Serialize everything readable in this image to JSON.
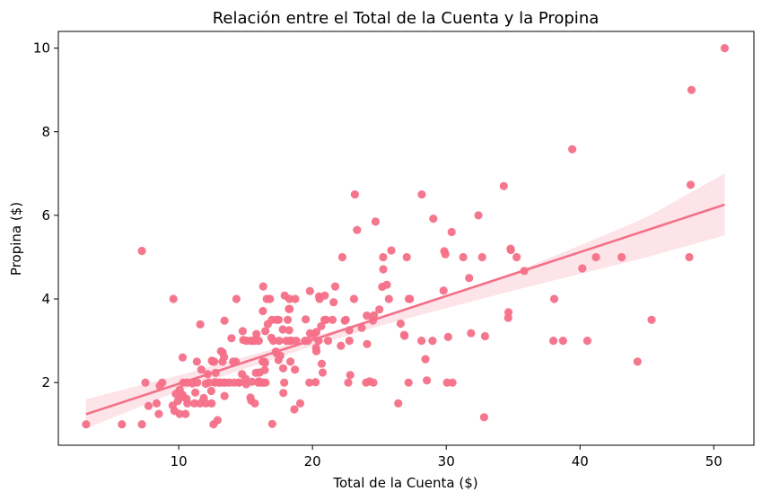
{
  "chart_data": {
    "type": "scatter",
    "title": "Relación entre el Total de la Cuenta y la Propina",
    "xlabel": "Total de la Cuenta ($)",
    "ylabel": "Propina ($)",
    "xlim": [
      1.0,
      53.0
    ],
    "ylim": [
      0.5,
      10.4
    ],
    "xticks": [
      10,
      20,
      30,
      40,
      50
    ],
    "yticks": [
      2,
      4,
      6,
      8,
      10
    ],
    "x_tick_labels": [
      "10",
      "20",
      "30",
      "40",
      "50"
    ],
    "y_tick_labels": [
      "2",
      "4",
      "6",
      "8",
      "10"
    ],
    "grid": false,
    "legend": "none",
    "color": "#f47088",
    "band_color": "#fbd9e0",
    "regression": {
      "slope": 0.105,
      "intercept": 0.92,
      "x_range": [
        3.07,
        50.81
      ],
      "ci_lower": [
        [
          3.07,
          0.9
        ],
        [
          10,
          1.8
        ],
        [
          17,
          2.55
        ],
        [
          20,
          2.87
        ],
        [
          25,
          3.35
        ],
        [
          30,
          3.78
        ],
        [
          35,
          4.2
        ],
        [
          40,
          4.6
        ],
        [
          45,
          5.0
        ],
        [
          50.81,
          5.52
        ]
      ],
      "ci_upper": [
        [
          3.07,
          1.6
        ],
        [
          10,
          2.17
        ],
        [
          17,
          2.8
        ],
        [
          20,
          3.1
        ],
        [
          25,
          3.55
        ],
        [
          30,
          4.07
        ],
        [
          35,
          4.63
        ],
        [
          40,
          5.28
        ],
        [
          45,
          5.96
        ],
        [
          50.81,
          7.0
        ]
      ]
    },
    "points": [
      [
        3.07,
        1.0
      ],
      [
        5.75,
        1.0
      ],
      [
        7.25,
        1.0
      ],
      [
        7.25,
        5.15
      ],
      [
        7.51,
        2.0
      ],
      [
        7.74,
        1.44
      ],
      [
        8.35,
        1.5
      ],
      [
        8.51,
        1.25
      ],
      [
        8.58,
        1.92
      ],
      [
        8.77,
        2.0
      ],
      [
        9.55,
        1.45
      ],
      [
        9.6,
        4.0
      ],
      [
        9.68,
        1.32
      ],
      [
        9.78,
        1.73
      ],
      [
        9.94,
        1.56
      ],
      [
        10.07,
        1.83
      ],
      [
        10.07,
        1.25
      ],
      [
        10.27,
        1.71
      ],
      [
        10.29,
        2.6
      ],
      [
        10.33,
        1.67
      ],
      [
        10.34,
        1.66
      ],
      [
        10.34,
        2.0
      ],
      [
        10.51,
        1.25
      ],
      [
        10.59,
        1.61
      ],
      [
        10.63,
        2.0
      ],
      [
        10.65,
        1.5
      ],
      [
        11.02,
        1.98
      ],
      [
        11.17,
        1.5
      ],
      [
        11.24,
        1.76
      ],
      [
        11.35,
        2.5
      ],
      [
        11.38,
        2.0
      ],
      [
        11.59,
        1.5
      ],
      [
        11.61,
        3.39
      ],
      [
        11.69,
        2.31
      ],
      [
        11.87,
        1.63
      ],
      [
        12.02,
        1.97
      ],
      [
        12.03,
        1.5
      ],
      [
        12.16,
        2.2
      ],
      [
        12.26,
        2.0
      ],
      [
        12.43,
        1.8
      ],
      [
        12.46,
        1.5
      ],
      [
        12.48,
        2.52
      ],
      [
        12.54,
        2.5
      ],
      [
        12.6,
        1.0
      ],
      [
        12.66,
        2.5
      ],
      [
        12.69,
        2.0
      ],
      [
        12.74,
        2.01
      ],
      [
        12.76,
        2.23
      ],
      [
        12.9,
        1.1
      ],
      [
        13.0,
        2.0
      ],
      [
        13.03,
        2.0
      ],
      [
        13.13,
        2.0
      ],
      [
        13.16,
        2.75
      ],
      [
        13.27,
        2.5
      ],
      [
        13.28,
        2.72
      ],
      [
        13.37,
        2.0
      ],
      [
        13.39,
        2.61
      ],
      [
        13.42,
        1.68
      ],
      [
        13.42,
        3.48
      ],
      [
        13.51,
        2.0
      ],
      [
        13.81,
        2.0
      ],
      [
        13.94,
        3.06
      ],
      [
        14.07,
        2.5
      ],
      [
        14.15,
        2.0
      ],
      [
        14.26,
        2.5
      ],
      [
        14.31,
        4.0
      ],
      [
        14.48,
        2.0
      ],
      [
        14.52,
        2.0
      ],
      [
        14.73,
        2.2
      ],
      [
        14.78,
        3.23
      ],
      [
        14.83,
        3.02
      ],
      [
        15.01,
        2.09
      ],
      [
        15.04,
        1.96
      ],
      [
        15.06,
        3.0
      ],
      [
        15.36,
        1.64
      ],
      [
        15.38,
        3.0
      ],
      [
        15.42,
        1.57
      ],
      [
        15.48,
        2.02
      ],
      [
        15.53,
        3.0
      ],
      [
        15.69,
        3.0
      ],
      [
        15.69,
        1.5
      ],
      [
        15.77,
        2.23
      ],
      [
        15.81,
        3.16
      ],
      [
        15.95,
        2.0
      ],
      [
        15.98,
        2.03
      ],
      [
        15.98,
        3.0
      ],
      [
        16.0,
        2.0
      ],
      [
        16.04,
        2.24
      ],
      [
        16.21,
        2.0
      ],
      [
        16.27,
        2.5
      ],
      [
        16.29,
        3.71
      ],
      [
        16.31,
        2.0
      ],
      [
        16.32,
        4.3
      ],
      [
        16.4,
        2.5
      ],
      [
        16.43,
        2.3
      ],
      [
        16.45,
        2.47
      ],
      [
        16.47,
        3.23
      ],
      [
        16.49,
        2.0
      ],
      [
        16.58,
        4.0
      ],
      [
        16.66,
        3.4
      ],
      [
        16.82,
        4.0
      ],
      [
        16.93,
        3.07
      ],
      [
        16.97,
        3.5
      ],
      [
        16.99,
        1.01
      ],
      [
        17.07,
        3.0
      ],
      [
        17.26,
        2.74
      ],
      [
        17.29,
        2.71
      ],
      [
        17.31,
        3.5
      ],
      [
        17.46,
        2.54
      ],
      [
        17.47,
        3.5
      ],
      [
        17.51,
        3.0
      ],
      [
        17.59,
        2.64
      ],
      [
        17.78,
        3.27
      ],
      [
        17.81,
        2.34
      ],
      [
        17.82,
        1.75
      ],
      [
        17.89,
        2.0
      ],
      [
        17.92,
        4.08
      ],
      [
        18.04,
        3.0
      ],
      [
        18.15,
        3.5
      ],
      [
        18.24,
        3.76
      ],
      [
        18.26,
        3.25
      ],
      [
        18.28,
        4.0
      ],
      [
        18.29,
        3.0
      ],
      [
        18.29,
        3.76
      ],
      [
        18.35,
        2.5
      ],
      [
        18.43,
        3.0
      ],
      [
        18.64,
        1.36
      ],
      [
        18.69,
        2.31
      ],
      [
        18.71,
        4.0
      ],
      [
        18.78,
        3.0
      ],
      [
        19.08,
        1.5
      ],
      [
        19.44,
        3.0
      ],
      [
        19.49,
        3.51
      ],
      [
        19.65,
        3.0
      ],
      [
        19.77,
        2.0
      ],
      [
        19.81,
        4.19
      ],
      [
        19.82,
        3.18
      ],
      [
        20.08,
        3.15
      ],
      [
        20.23,
        2.01
      ],
      [
        20.27,
        2.83
      ],
      [
        20.29,
        3.21
      ],
      [
        20.29,
        2.75
      ],
      [
        20.45,
        3.0
      ],
      [
        20.49,
        4.06
      ],
      [
        20.53,
        4.0
      ],
      [
        20.65,
        3.35
      ],
      [
        20.69,
        2.45
      ],
      [
        20.76,
        2.24
      ],
      [
        20.9,
        3.5
      ],
      [
        20.92,
        4.08
      ],
      [
        21.01,
        3.5
      ],
      [
        21.16,
        3.0
      ],
      [
        21.5,
        3.5
      ],
      [
        21.58,
        3.92
      ],
      [
        21.7,
        4.3
      ],
      [
        22.12,
        2.88
      ],
      [
        22.23,
        5.0
      ],
      [
        22.42,
        3.48
      ],
      [
        22.49,
        3.5
      ],
      [
        22.67,
        2.0
      ],
      [
        22.75,
        3.25
      ],
      [
        22.76,
        3.0
      ],
      [
        22.82,
        2.18
      ],
      [
        23.1,
        4.0
      ],
      [
        23.17,
        6.5
      ],
      [
        23.33,
        5.65
      ],
      [
        23.68,
        3.31
      ],
      [
        24.01,
        2.0
      ],
      [
        24.06,
        3.6
      ],
      [
        24.08,
        2.92
      ],
      [
        24.27,
        2.03
      ],
      [
        24.52,
        3.48
      ],
      [
        24.55,
        2.0
      ],
      [
        24.59,
        3.61
      ],
      [
        24.71,
        5.85
      ],
      [
        25.0,
        3.75
      ],
      [
        25.21,
        4.29
      ],
      [
        25.28,
        5.0
      ],
      [
        25.29,
        4.71
      ],
      [
        25.56,
        4.34
      ],
      [
        25.71,
        4.0
      ],
      [
        25.89,
        5.16
      ],
      [
        26.41,
        1.5
      ],
      [
        26.59,
        3.41
      ],
      [
        26.86,
        3.14
      ],
      [
        26.88,
        3.12
      ],
      [
        27.05,
        5.0
      ],
      [
        27.18,
        2.0
      ],
      [
        27.2,
        4.0
      ],
      [
        27.28,
        4.0
      ],
      [
        28.15,
        3.0
      ],
      [
        28.17,
        6.5
      ],
      [
        28.44,
        2.56
      ],
      [
        28.55,
        2.05
      ],
      [
        28.97,
        3.0
      ],
      [
        29.03,
        5.92
      ],
      [
        29.8,
        4.2
      ],
      [
        29.85,
        5.14
      ],
      [
        29.93,
        5.07
      ],
      [
        30.06,
        2.0
      ],
      [
        30.14,
        3.09
      ],
      [
        30.4,
        5.6
      ],
      [
        30.46,
        2.0
      ],
      [
        31.27,
        5.0
      ],
      [
        31.71,
        4.5
      ],
      [
        31.85,
        3.18
      ],
      [
        32.4,
        6.0
      ],
      [
        32.68,
        5.0
      ],
      [
        32.83,
        1.17
      ],
      [
        32.9,
        3.11
      ],
      [
        34.3,
        6.7
      ],
      [
        34.63,
        3.55
      ],
      [
        34.65,
        3.68
      ],
      [
        34.81,
        5.2
      ],
      [
        34.83,
        5.17
      ],
      [
        35.26,
        5.0
      ],
      [
        35.83,
        4.67
      ],
      [
        38.01,
        3.0
      ],
      [
        38.07,
        4.0
      ],
      [
        38.73,
        3.0
      ],
      [
        39.42,
        7.58
      ],
      [
        40.17,
        4.73
      ],
      [
        40.55,
        3.0
      ],
      [
        41.19,
        5.0
      ],
      [
        43.11,
        5.0
      ],
      [
        44.3,
        2.5
      ],
      [
        45.35,
        3.5
      ],
      [
        48.17,
        5.0
      ],
      [
        48.27,
        6.73
      ],
      [
        48.33,
        9.0
      ],
      [
        50.81,
        10.0
      ]
    ]
  }
}
